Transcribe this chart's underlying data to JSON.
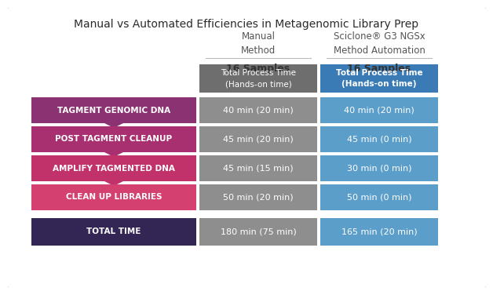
{
  "title": "Manual vs Automated Efficiencies in Metagenomic Library Prep",
  "col1_header_line1": "Manual",
  "col1_header_line2": "Method",
  "col2_header_line1": "Sciclone® G3 NGSx",
  "col2_header_line2": "Method Automation",
  "col1_samples": "16 Samples",
  "col2_samples": "16 Samples",
  "col_header_label": "Total Process Time",
  "col_header_sublabel": "(Hands-on time)",
  "row_labels": [
    "TAGMENT GENOMIC DNA",
    "POST TAGMENT CLEANUP",
    "AMPLIFY TAGMENTED DNA",
    "CLEAN UP LIBRARIES",
    "TOTAL TIME"
  ],
  "row_label_colors": [
    "#8B3272",
    "#A83070",
    "#C2326A",
    "#D44070",
    "#332654"
  ],
  "col1_values": [
    "40 min (20 min)",
    "45 min (20 min)",
    "45 min (15 min)",
    "50 min (20 min)",
    "180 min (75 min)"
  ],
  "col2_values": [
    "40 min (20 min)",
    "45 min (0 min)",
    "30 min (0 min)",
    "50 min (0 min)",
    "165 min (20 min)"
  ],
  "col1_cell_color": "#8E8E8E",
  "col2_cell_color": "#5B9EC9",
  "col1_header_color": "#6E6E6E",
  "col2_header_color": "#3A7BB5",
  "background_color": "#FFFFFF",
  "text_color_white": "#FFFFFF",
  "text_color_dark": "#555555",
  "title_fontsize": 10,
  "header_fontsize": 8.5,
  "cell_fontsize": 8,
  "label_fontsize": 7.5,
  "samples_fontsize": 9
}
